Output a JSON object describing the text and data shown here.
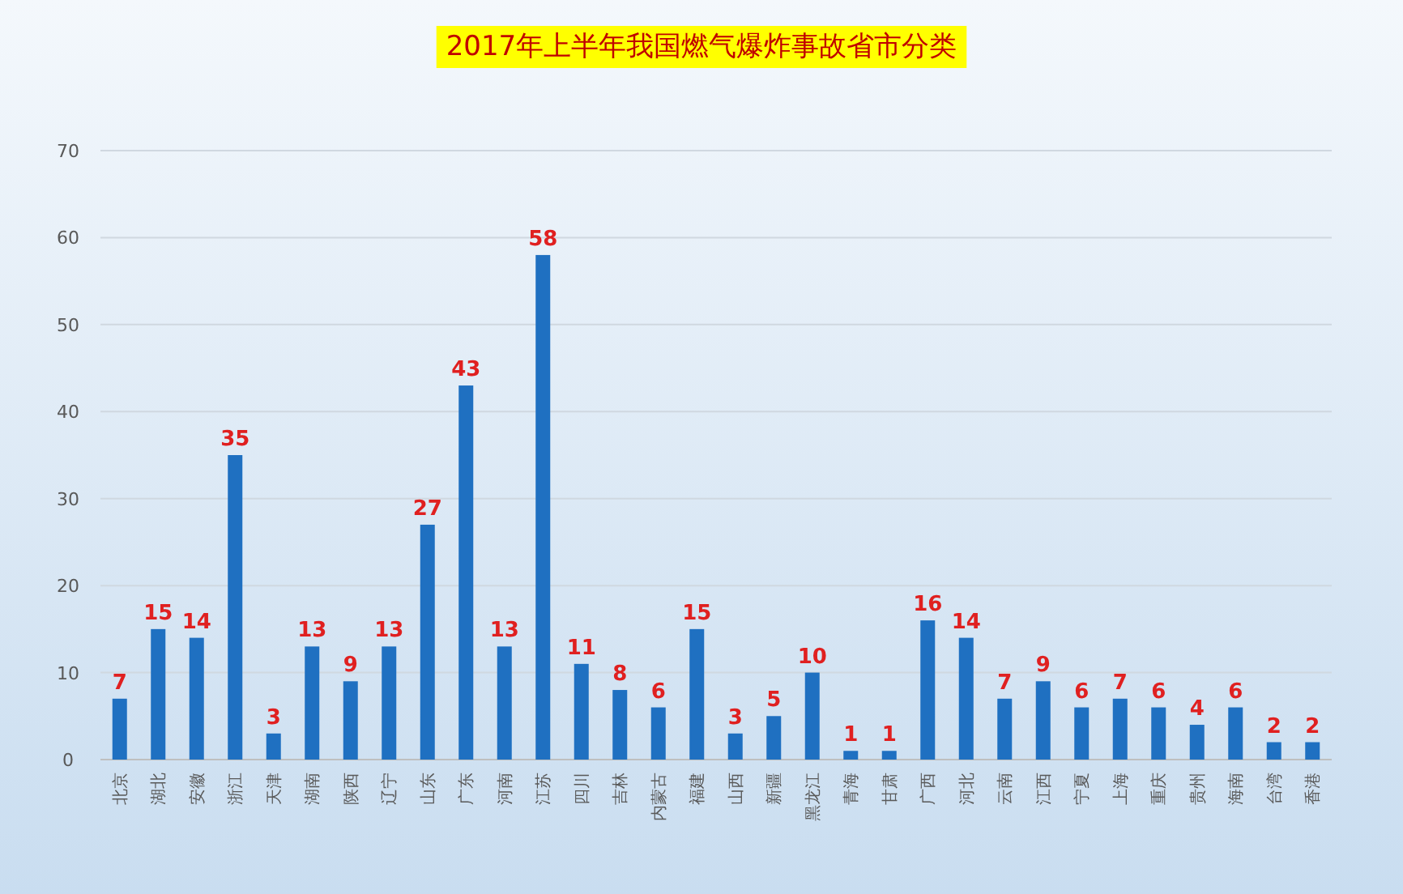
{
  "chart_data": {
    "type": "bar",
    "title": "2017年上半年我国燃气爆炸事故省市分类",
    "categories": [
      "北京",
      "湖北",
      "安徽",
      "浙江",
      "天津",
      "湖南",
      "陕西",
      "辽宁",
      "山东",
      "广东",
      "河南",
      "江苏",
      "四川",
      "吉林",
      "内蒙古",
      "福建",
      "山西",
      "新疆",
      "黑龙江",
      "青海",
      "甘肃",
      "广西",
      "河北",
      "云南",
      "江西",
      "宁夏",
      "上海",
      "重庆",
      "贵州",
      "海南",
      "台湾",
      "香港"
    ],
    "values": [
      7,
      15,
      14,
      35,
      3,
      13,
      9,
      13,
      27,
      43,
      13,
      58,
      11,
      8,
      6,
      15,
      3,
      5,
      10,
      1,
      1,
      16,
      14,
      7,
      9,
      6,
      7,
      6,
      4,
      6,
      2,
      2
    ],
    "color": "#1f70c1",
    "ylim": [
      0,
      70
    ],
    "yticks": [
      0,
      10,
      20,
      30,
      40,
      50,
      60,
      70
    ],
    "grid": "y",
    "data_labels": true
  }
}
